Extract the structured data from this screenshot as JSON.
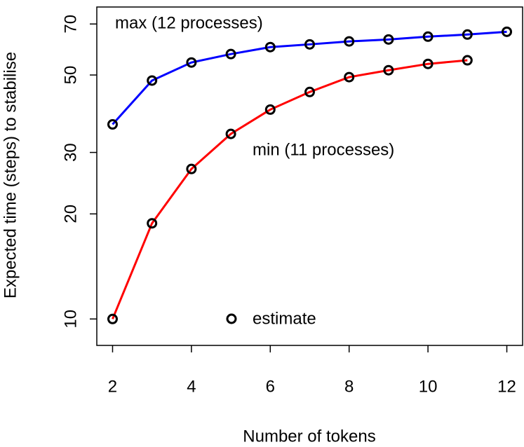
{
  "chart_data": {
    "type": "line",
    "log_y": true,
    "xlabel": "Number of tokens",
    "ylabel": "Expected time (steps) to stabilise",
    "x": [
      2,
      3,
      4,
      5,
      6,
      7,
      8,
      9,
      10,
      11,
      12
    ],
    "series": [
      {
        "name": "max (12 processes)",
        "color": "#0000ff",
        "values": [
          36.1,
          48.2,
          54.3,
          57.4,
          60.1,
          61.2,
          62.4,
          63.2,
          64.4,
          65.3,
          66.5
        ]
      },
      {
        "name": "min (11 processes)",
        "color": "#ff0000",
        "values": [
          10,
          18.8,
          26.9,
          33.9,
          39.8,
          44.7,
          49.3,
          51.6,
          53.8,
          55.1,
          null
        ]
      }
    ],
    "legend_label": "estimate",
    "xlim": [
      1.6,
      12.4
    ],
    "xticks": [
      2,
      4,
      6,
      8,
      10,
      12
    ],
    "ylim": [
      8.4,
      78.3
    ],
    "yticks": [
      10,
      20,
      30,
      50,
      70
    ]
  }
}
